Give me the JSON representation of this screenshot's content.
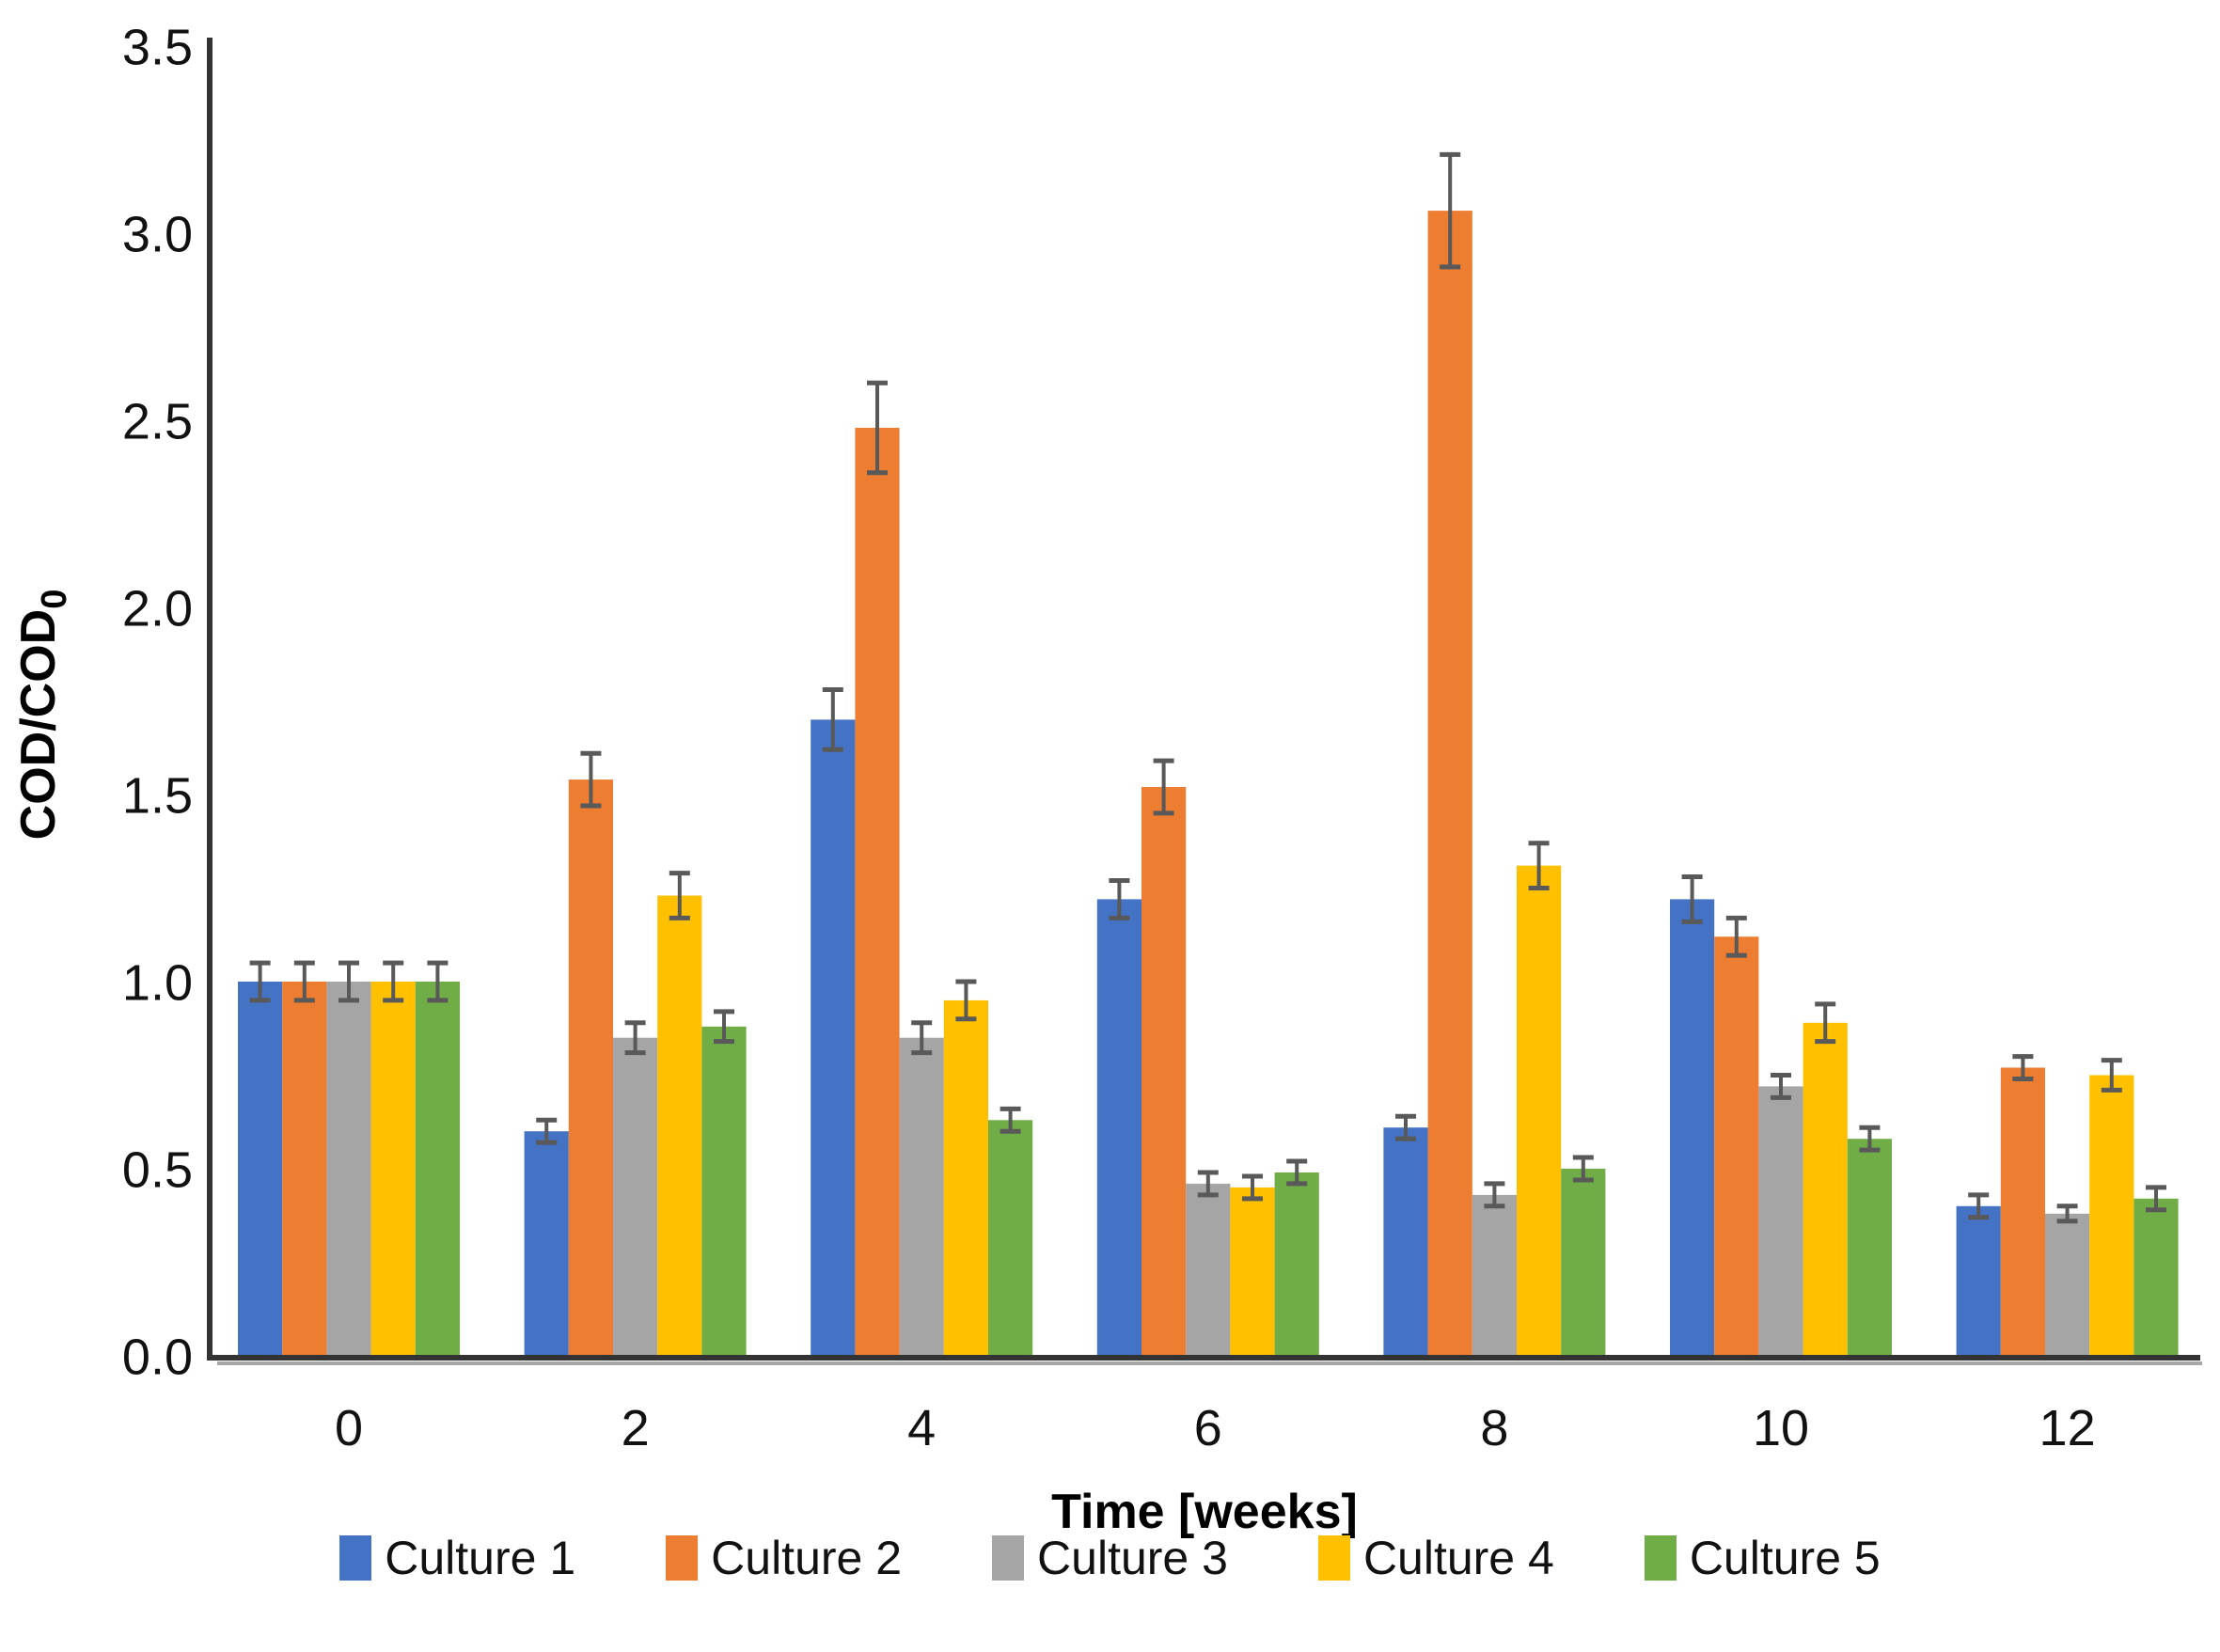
{
  "chart_data": {
    "type": "bar",
    "title": "",
    "xlabel": "Time [weeks]",
    "ylabel_main": "COD/COD",
    "ylabel_sub": "0",
    "categories": [
      "0",
      "2",
      "4",
      "6",
      "8",
      "10",
      "12"
    ],
    "ylim": [
      0,
      3.5
    ],
    "ytick_step": 0.5,
    "y_tick_labels": [
      "0.0",
      "0.5",
      "1.0",
      "1.5",
      "2.0",
      "2.5",
      "3.0",
      "3.5"
    ],
    "grid": false,
    "legend_position": "bottom",
    "error_bars": true,
    "series": [
      {
        "name": "Culture 1",
        "color": "#4472C4",
        "values": [
          1.0,
          0.6,
          1.7,
          1.22,
          0.61,
          1.22,
          0.4
        ],
        "errors": [
          0.05,
          0.03,
          0.08,
          0.05,
          0.03,
          0.06,
          0.03
        ]
      },
      {
        "name": "Culture 2",
        "color": "#ED7D31",
        "values": [
          1.0,
          1.54,
          2.48,
          1.52,
          3.06,
          1.12,
          0.77
        ],
        "errors": [
          0.05,
          0.07,
          0.12,
          0.07,
          0.15,
          0.05,
          0.03
        ]
      },
      {
        "name": "Culture 3",
        "color": "#A5A5A5",
        "values": [
          1.0,
          0.85,
          0.85,
          0.46,
          0.43,
          0.72,
          0.38
        ],
        "errors": [
          0.05,
          0.04,
          0.04,
          0.03,
          0.03,
          0.03,
          0.02
        ]
      },
      {
        "name": "Culture 4",
        "color": "#FFC000",
        "values": [
          1.0,
          1.23,
          0.95,
          0.45,
          1.31,
          0.89,
          0.75
        ],
        "errors": [
          0.05,
          0.06,
          0.05,
          0.03,
          0.06,
          0.05,
          0.04
        ]
      },
      {
        "name": "Culture 5",
        "color": "#70AD47",
        "values": [
          1.0,
          0.88,
          0.63,
          0.49,
          0.5,
          0.58,
          0.42
        ],
        "errors": [
          0.05,
          0.04,
          0.03,
          0.03,
          0.03,
          0.03,
          0.03
        ]
      }
    ],
    "colors": {
      "error_bar": "#595959",
      "axis_line": "#333333",
      "axis_shadow": "#a6a6a6",
      "text": "#111111"
    }
  }
}
